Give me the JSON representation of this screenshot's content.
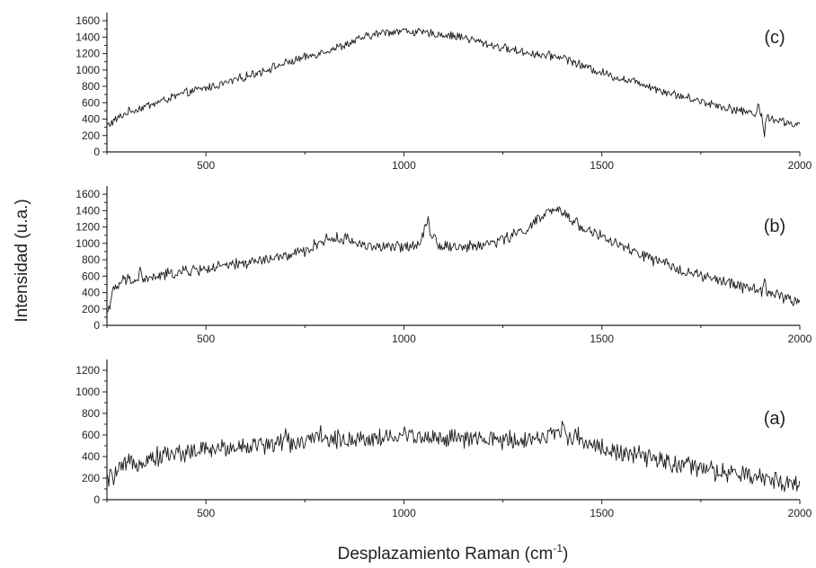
{
  "figure": {
    "ylabel": "Intensidad (u.a.)",
    "xlabel_main": "Desplazamiento Raman (cm",
    "xlabel_sup": "-1",
    "xlabel_end": ")"
  },
  "chart_data": [
    {
      "type": "line",
      "label": "(c)",
      "xlim": [
        250,
        2000
      ],
      "ylim": [
        0,
        1700
      ],
      "xticks": [
        500,
        1000,
        1500,
        2000
      ],
      "yticks": [
        0,
        200,
        400,
        600,
        800,
        1000,
        1200,
        1400,
        1600
      ],
      "series": [
        {
          "x": [
            250,
            300,
            350,
            400,
            450,
            500,
            550,
            600,
            650,
            700,
            750,
            800,
            850,
            900,
            950,
            1000,
            1050,
            1100,
            1150,
            1200,
            1250,
            1300,
            1350,
            1400,
            1450,
            1500,
            1550,
            1600,
            1650,
            1700,
            1750,
            1800,
            1850,
            1900,
            1950,
            2000
          ],
          "y": [
            320,
            480,
            560,
            640,
            720,
            780,
            840,
            920,
            1000,
            1080,
            1150,
            1230,
            1300,
            1400,
            1460,
            1480,
            1450,
            1430,
            1400,
            1330,
            1270,
            1220,
            1180,
            1160,
            1050,
            970,
            890,
            840,
            750,
            680,
            620,
            560,
            500,
            460,
            380,
            320
          ],
          "features": [
            {
              "x": 1910,
              "y": 170
            },
            {
              "x": 1895,
              "y": 600
            }
          ]
        }
      ]
    },
    {
      "type": "line",
      "label": "(b)",
      "xlim": [
        250,
        2000
      ],
      "ylim": [
        0,
        1700
      ],
      "xticks": [
        500,
        1000,
        1500,
        2000
      ],
      "yticks": [
        0,
        200,
        400,
        600,
        800,
        1000,
        1200,
        1400,
        1600
      ],
      "series": [
        {
          "x": [
            250,
            265,
            290,
            350,
            400,
            450,
            500,
            550,
            600,
            650,
            700,
            750,
            800,
            850,
            900,
            950,
            1000,
            1040,
            1060,
            1070,
            1090,
            1150,
            1200,
            1250,
            1300,
            1330,
            1370,
            1400,
            1450,
            1500,
            1550,
            1600,
            1650,
            1700,
            1750,
            1800,
            1850,
            1900,
            1950,
            2000
          ],
          "y": [
            150,
            400,
            550,
            560,
            620,
            660,
            690,
            720,
            760,
            800,
            840,
            900,
            1050,
            1060,
            980,
            950,
            960,
            1000,
            1300,
            1100,
            980,
            950,
            980,
            1050,
            1150,
            1250,
            1400,
            1380,
            1200,
            1080,
            960,
            860,
            760,
            680,
            600,
            540,
            480,
            420,
            360,
            280
          ],
          "features": [
            {
              "x": 335,
              "y": 700
            },
            {
              "x": 1060,
              "y": 1330
            },
            {
              "x": 1910,
              "y": 600
            }
          ]
        }
      ]
    },
    {
      "type": "line",
      "label": "(a)",
      "xlim": [
        250,
        2000
      ],
      "ylim": [
        0,
        1300
      ],
      "xticks": [
        500,
        1000,
        1500,
        2000
      ],
      "yticks": [
        0,
        200,
        400,
        600,
        800,
        1000,
        1200
      ],
      "series": [
        {
          "x": [
            250,
            300,
            350,
            400,
            450,
            500,
            550,
            600,
            650,
            700,
            750,
            800,
            850,
            900,
            950,
            1000,
            1050,
            1100,
            1150,
            1200,
            1250,
            1300,
            1350,
            1400,
            1450,
            1500,
            1550,
            1600,
            1650,
            1700,
            1750,
            1800,
            1850,
            1900,
            1950,
            2000
          ],
          "y": [
            180,
            320,
            380,
            420,
            440,
            460,
            480,
            500,
            510,
            530,
            540,
            550,
            560,
            570,
            575,
            590,
            580,
            570,
            560,
            550,
            555,
            560,
            580,
            620,
            560,
            480,
            430,
            400,
            360,
            320,
            290,
            250,
            230,
            200,
            180,
            140
          ],
          "features": [
            {
              "x": 700,
              "y": 650
            },
            {
              "x": 790,
              "y": 690
            },
            {
              "x": 1020,
              "y": 700
            },
            {
              "x": 1400,
              "y": 720
            }
          ]
        }
      ]
    }
  ]
}
